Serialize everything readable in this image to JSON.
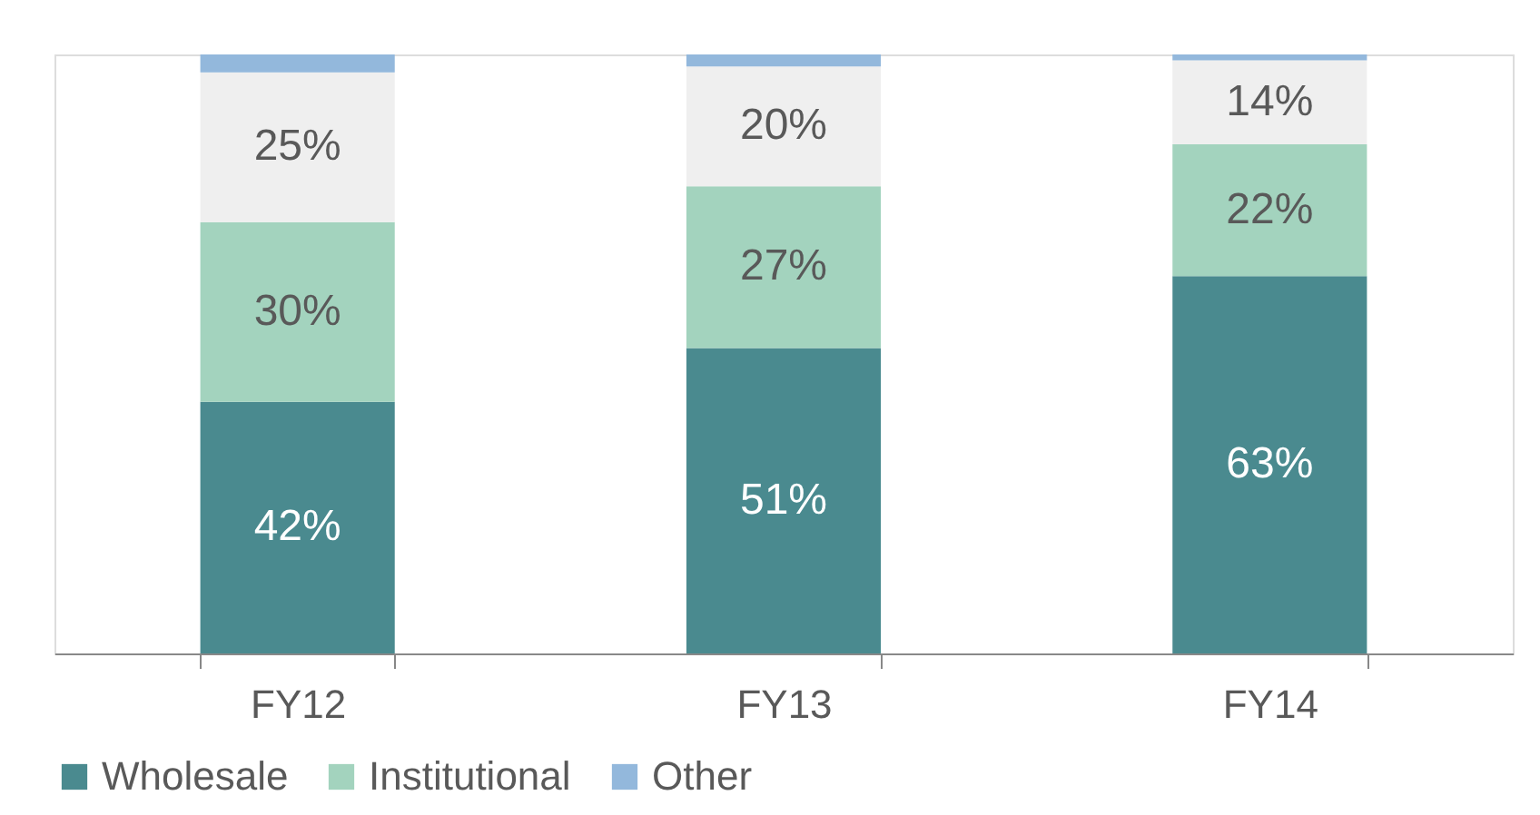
{
  "chart_data": {
    "type": "bar",
    "stacked": true,
    "categories": [
      "FY12",
      "FY13",
      "FY14"
    ],
    "legend": "bottom",
    "grid": false,
    "tick_labels": "x",
    "series": [
      {
        "name": "Wholesale",
        "color": "#4a8a8f",
        "values": [
          42,
          51,
          63
        ],
        "value_labels": [
          "42%",
          "51%",
          "63%"
        ]
      },
      {
        "name": "Institutional",
        "color": "#a3d3be",
        "values": [
          30,
          27,
          22
        ],
        "value_labels": [
          "30%",
          "27%",
          "22%"
        ]
      },
      {
        "color": "#efefef",
        "values": [
          25,
          20,
          14
        ],
        "value_labels": [
          "25%",
          "20%",
          "14%"
        ]
      },
      {
        "name": "Other",
        "color": "#93b8dc",
        "values": [
          3,
          2,
          1
        ]
      }
    ]
  }
}
